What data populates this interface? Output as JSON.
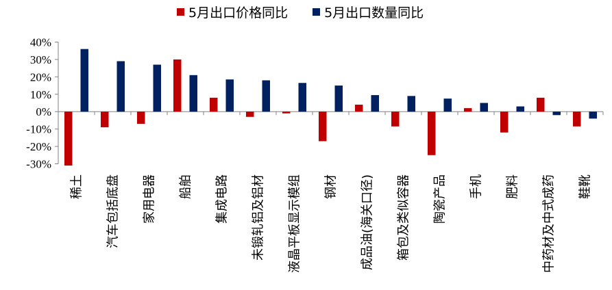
{
  "chart_data": {
    "type": "bar",
    "categories": [
      "稀土",
      "汽车包括底盘",
      "家用电器",
      "船舶",
      "集成电路",
      "未锻轧铝及铝材",
      "液晶平板显示模组",
      "钢材",
      "成品油(海关口径)",
      "箱包及类似容器",
      "陶瓷产品",
      "手机",
      "肥料",
      "中药材及中式成药",
      "鞋靴"
    ],
    "series": [
      {
        "name": "5月出口价格同比",
        "color": "#C00000",
        "values": [
          -31,
          -9,
          -7,
          30,
          8,
          -3,
          -1,
          -17,
          4,
          -8.5,
          -25,
          2,
          -12,
          8,
          -8.5
        ]
      },
      {
        "name": "5月出口数量同比",
        "color": "#002060",
        "values": [
          36,
          29,
          27,
          21,
          18.5,
          18,
          16.5,
          15,
          9.5,
          9,
          7.5,
          5,
          3,
          -2,
          -4
        ]
      }
    ],
    "yticks": [
      "40%",
      "30%",
      "20%",
      "10%",
      "0%",
      "-10%",
      "-20%",
      "-30%"
    ],
    "ylim": [
      -30,
      40
    ],
    "legend_position": "top",
    "grid": false
  }
}
